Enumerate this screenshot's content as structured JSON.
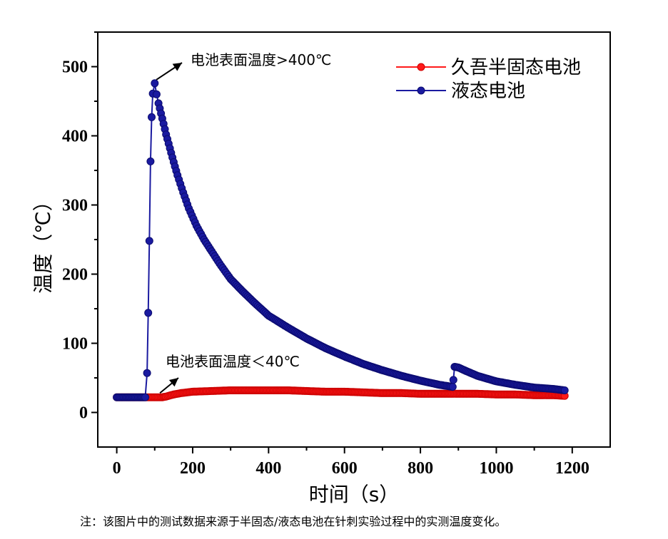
{
  "chart_data": {
    "type": "scatter",
    "title": "",
    "xlabel": "时间（s）",
    "ylabel": "温度（℃）",
    "xlim": [
      -50,
      1300
    ],
    "ylim": [
      -50,
      550
    ],
    "xticks": [
      "0",
      "200",
      "400",
      "600",
      "800",
      "1000",
      "1200"
    ],
    "yticks": [
      "0",
      "100",
      "200",
      "300",
      "400",
      "500"
    ],
    "xtick_values": [
      0,
      200,
      400,
      600,
      800,
      1000,
      1200
    ],
    "ytick_values": [
      0,
      100,
      200,
      300,
      400,
      500
    ],
    "legend_position": "top-right",
    "series": [
      {
        "name": "久吾半固态电池",
        "color": "#ff1a1a",
        "x": [
          0,
          20,
          40,
          60,
          80,
          100,
          120,
          130,
          150,
          170,
          200,
          250,
          300,
          350,
          400,
          450,
          500,
          550,
          600,
          650,
          700,
          750,
          800,
          850,
          880,
          900,
          950,
          1000,
          1050,
          1100,
          1150,
          1180
        ],
        "y": [
          22,
          22,
          22,
          22,
          22,
          22,
          22,
          23,
          26,
          28,
          30,
          31,
          32,
          32,
          32,
          32,
          31,
          30,
          30,
          29,
          28,
          28,
          27,
          27,
          27,
          27,
          27,
          26,
          26,
          25,
          25,
          24
        ]
      },
      {
        "name": "液态电池",
        "color": "#1a1aa0",
        "x": [
          0,
          20,
          40,
          60,
          75,
          80,
          83,
          86,
          89,
          92,
          95,
          100,
          105,
          110,
          120,
          130,
          140,
          150,
          160,
          175,
          190,
          210,
          230,
          250,
          275,
          300,
          330,
          360,
          400,
          450,
          500,
          550,
          600,
          650,
          700,
          750,
          800,
          850,
          885,
          887,
          890,
          900,
          920,
          950,
          1000,
          1050,
          1100,
          1150,
          1180
        ],
        "y": [
          22,
          22,
          22,
          22,
          22,
          57,
          144,
          248,
          363,
          427,
          461,
          476,
          460,
          447,
          425,
          402,
          382,
          362,
          343,
          318,
          295,
          270,
          250,
          233,
          212,
          193,
          176,
          160,
          140,
          123,
          107,
          93,
          81,
          70,
          61,
          53,
          46,
          40,
          37,
          47,
          66,
          65,
          60,
          53,
          45,
          40,
          36,
          34,
          32
        ]
      }
    ],
    "annotations": [
      {
        "text": "电池表面温度>400℃",
        "target_x": 95,
        "target_y": 476
      },
      {
        "text": "电池表面温度＜40℃",
        "target_x": 110,
        "target_y": 24
      }
    ]
  },
  "footnote": "注：该图片中的测试数据来源于半固态/液态电池在针刺实验过程中的实测温度变化。"
}
